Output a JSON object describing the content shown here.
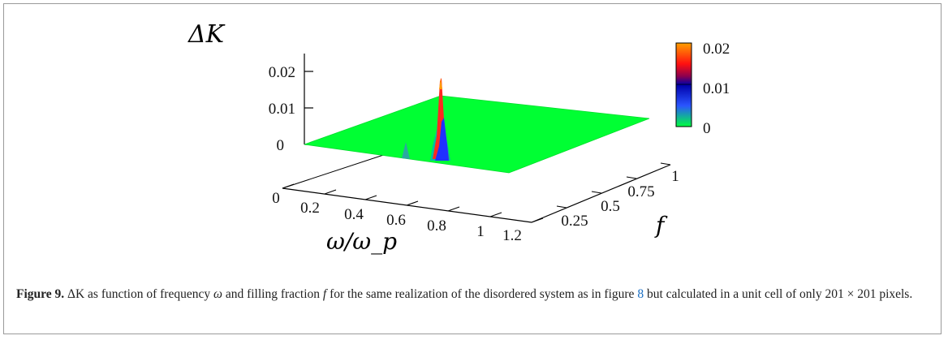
{
  "chart_data": {
    "type": "surface3d",
    "title": "",
    "zlabel": "ΔK",
    "xlabel": "ω/ω_p",
    "ylabel": "f",
    "x_ticks": [
      "0",
      "0.2",
      "0.4",
      "0.6",
      "0.8",
      "1",
      "1.2"
    ],
    "y_ticks": [
      "0.25",
      "0.5",
      "0.75",
      "1"
    ],
    "z_ticks": [
      "0",
      "0.01",
      "0.02"
    ],
    "zlim": [
      0,
      0.02
    ],
    "colorbar": {
      "min": 0,
      "max": 0.02,
      "ticks": [
        "0.02",
        "0.01",
        "0"
      ]
    },
    "surface_baseline": 0,
    "peaks": [
      {
        "omega": 0.73,
        "f": 0.5,
        "dK": 0.018,
        "color": "#ff3020"
      },
      {
        "omega": 0.73,
        "f": 0.48,
        "dK": 0.007,
        "color": "#2020ff"
      },
      {
        "omega": 0.45,
        "f": 0.5,
        "dK": 0.0015,
        "color": "#20a0a0"
      }
    ]
  },
  "caption": {
    "figure_label": "Figure 9.",
    "delta_k": "ΔK",
    "text_1": " as function of frequency ",
    "omega": "ω",
    "text_2": " and filling fraction ",
    "f": "f",
    "text_3": " for the same realization of the disordered system as in figure ",
    "ref": "8",
    "text_4": " but calculated in a unit cell of only 201 × 201 pixels."
  }
}
